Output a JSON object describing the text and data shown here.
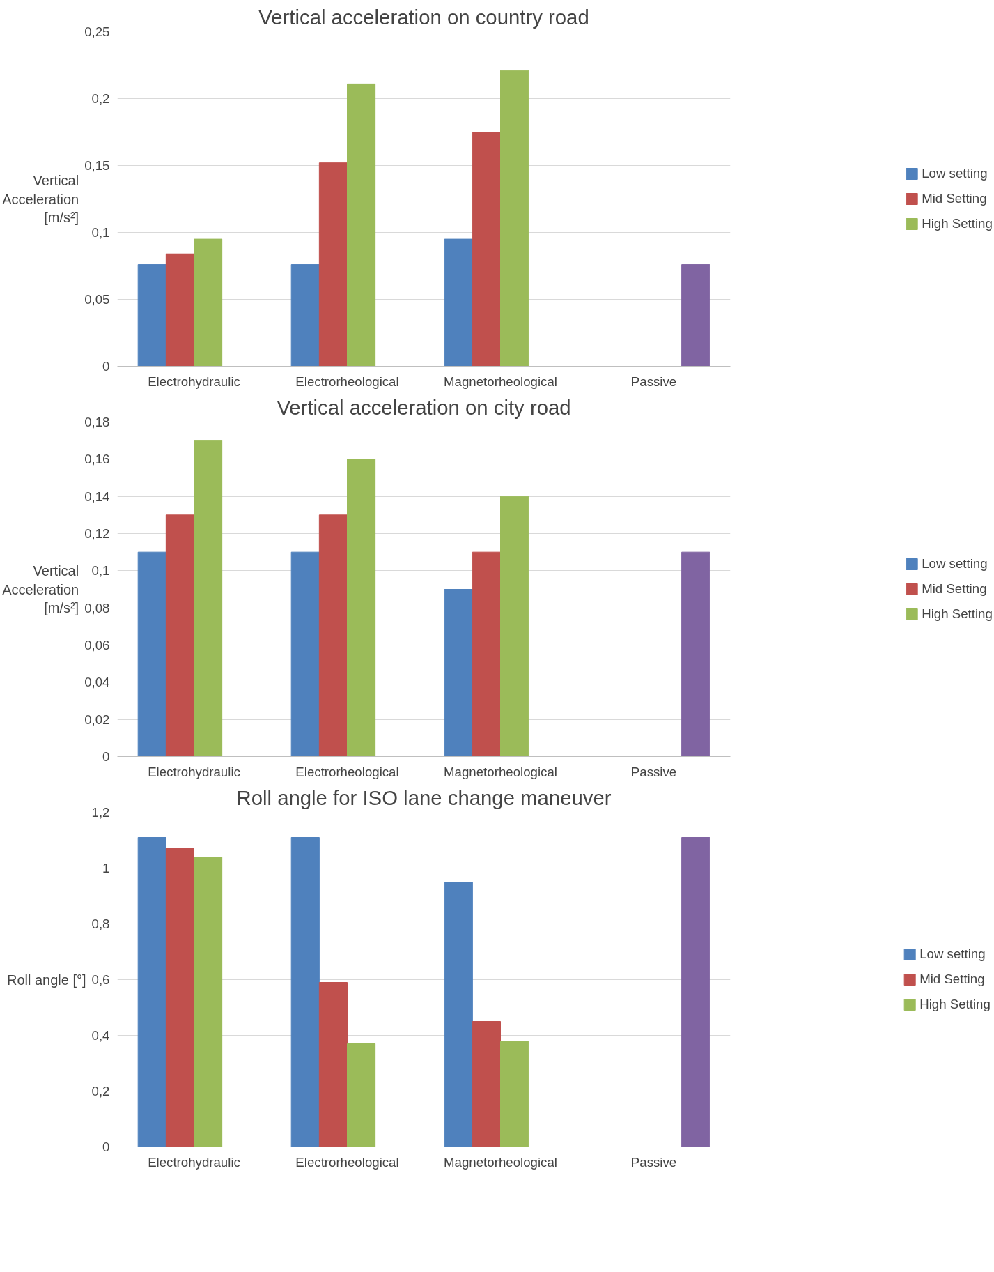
{
  "chart_data": [
    {
      "type": "bar",
      "title": "Vertical acceleration on country road",
      "ylabel": "Vertical Acceleration [m/s²]",
      "categories": [
        "Electrohydraulic",
        "Electrorheological",
        "Magnetorheological",
        "Passive"
      ],
      "series": [
        {
          "name": "Low setting",
          "color": "#4f81bd",
          "values": [
            0.076,
            0.076,
            0.095,
            null
          ]
        },
        {
          "name": "Mid Setting",
          "color": "#c0504d",
          "values": [
            0.084,
            0.152,
            0.175,
            null
          ]
        },
        {
          "name": "High Setting",
          "color": "#9bbb59",
          "values": [
            0.095,
            0.211,
            0.221,
            null
          ]
        },
        {
          "color": "#8064a2",
          "values": [
            null,
            null,
            null,
            0.076
          ]
        }
      ],
      "ylim": [
        0,
        0.25
      ],
      "yticks": [
        0,
        {
          "value": 0.05,
          "label": "0,05"
        },
        {
          "value": 0.1,
          "label": "0,1"
        },
        {
          "value": 0.15,
          "label": "0,15"
        },
        {
          "value": 0.2,
          "label": "0,2"
        },
        {
          "value": 0.25,
          "label": "0,25"
        }
      ],
      "grid": "y",
      "legend": "right"
    },
    {
      "type": "bar",
      "title": "Vertical acceleration on city road",
      "ylabel": "Vertical Acceleration [m/s²]",
      "categories": [
        "Electrohydraulic",
        "Electrorheological",
        "Magnetorheological",
        "Passive"
      ],
      "series": [
        {
          "name": "Low setting",
          "color": "#4f81bd",
          "values": [
            0.11,
            0.11,
            0.09,
            null
          ]
        },
        {
          "name": "Mid Setting",
          "color": "#c0504d",
          "values": [
            0.13,
            0.13,
            0.11,
            null
          ]
        },
        {
          "name": "High Setting",
          "color": "#9bbb59",
          "values": [
            0.17,
            0.16,
            0.14,
            null
          ]
        },
        {
          "color": "#8064a2",
          "values": [
            null,
            null,
            null,
            0.11
          ]
        }
      ],
      "ylim": [
        0,
        0.18
      ],
      "yticks": [
        0,
        {
          "value": 0.02,
          "label": "0,02"
        },
        {
          "value": 0.04,
          "label": "0,04"
        },
        {
          "value": 0.06,
          "label": "0,06"
        },
        {
          "value": 0.08,
          "label": "0,08"
        },
        {
          "value": 0.1,
          "label": "0,1"
        },
        {
          "value": 0.12,
          "label": "0,12"
        },
        {
          "value": 0.14,
          "label": "0,14"
        },
        {
          "value": 0.16,
          "label": "0,16"
        },
        {
          "value": 0.18,
          "label": "0,18"
        }
      ],
      "grid": "y",
      "legend": "right"
    },
    {
      "type": "bar",
      "title": "Roll angle for ISO lane change maneuver",
      "ylabel": "Roll angle [°]",
      "categories": [
        "Electrohydraulic",
        "Electrorheological",
        "Magnetorheological",
        "Passive"
      ],
      "series": [
        {
          "name": "Low setting",
          "color": "#4f81bd",
          "values": [
            1.11,
            1.11,
            0.95,
            null
          ]
        },
        {
          "name": "Mid Setting",
          "color": "#c0504d",
          "values": [
            1.07,
            0.59,
            0.45,
            null
          ]
        },
        {
          "name": "High Setting",
          "color": "#9bbb59",
          "values": [
            1.04,
            0.37,
            0.38,
            null
          ]
        },
        {
          "color": "#8064a2",
          "values": [
            null,
            null,
            null,
            1.11
          ]
        }
      ],
      "ylim": [
        0,
        1.2
      ],
      "yticks": [
        0,
        {
          "value": 0.2,
          "label": "0,2"
        },
        {
          "value": 0.4,
          "label": "0,4"
        },
        {
          "value": 0.6,
          "label": "0,6"
        },
        {
          "value": 0.8,
          "label": "0,8"
        },
        1,
        {
          "value": 1.2,
          "label": "1,2"
        }
      ],
      "grid": "y",
      "legend": "right"
    }
  ]
}
